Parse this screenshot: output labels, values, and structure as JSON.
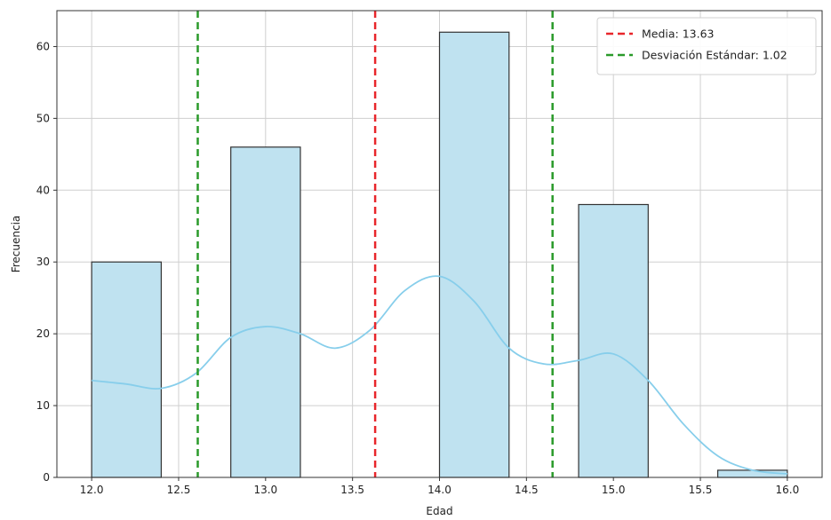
{
  "chart_data": {
    "type": "bar",
    "title": "",
    "xlabel": "Edad",
    "ylabel": "Frecuencia",
    "xlim": [
      11.8,
      16.2
    ],
    "ylim": [
      0,
      65
    ],
    "grid": true,
    "legend_position": "top-right",
    "x_ticks": [
      "12.0",
      "12.5",
      "13.0",
      "13.5",
      "14.0",
      "14.5",
      "15.0",
      "15.5",
      "16.0"
    ],
    "y_ticks": [
      "0",
      "10",
      "20",
      "30",
      "40",
      "50",
      "60"
    ],
    "bins": [
      {
        "start": 12.0,
        "end": 12.4,
        "count": 30
      },
      {
        "start": 12.8,
        "end": 13.2,
        "count": 46
      },
      {
        "start": 13.6,
        "end": 14.0,
        "count": 0
      },
      {
        "start": 14.0,
        "end": 14.4,
        "count": 62
      },
      {
        "start": 14.8,
        "end": 15.2,
        "count": 38
      },
      {
        "start": 15.6,
        "end": 16.0,
        "count": 1
      }
    ],
    "kde": {
      "x": [
        12.0,
        12.2,
        12.4,
        12.6,
        12.8,
        13.0,
        13.2,
        13.4,
        13.6,
        13.8,
        14.0,
        14.2,
        14.4,
        14.6,
        14.8,
        15.0,
        15.2,
        15.4,
        15.6,
        15.8,
        16.0
      ],
      "y": [
        13.5,
        13.0,
        12.4,
        14.5,
        19.5,
        21.0,
        20.0,
        18.0,
        20.5,
        26.0,
        28.0,
        24.5,
        18.0,
        15.8,
        16.3,
        17.2,
        13.5,
        7.5,
        3.0,
        1.0,
        0.5
      ]
    },
    "lines": [
      {
        "name": "Media: 13.63",
        "x": 13.63,
        "color": "#e8262b",
        "style": "dashed"
      },
      {
        "name": "Desviación Estándar: 1.02",
        "x": 12.61,
        "color": "#2a9a2a",
        "style": "dashed"
      },
      {
        "x": 14.65,
        "color": "#2a9a2a",
        "style": "dashed"
      }
    ],
    "colors": {
      "bar_fill": "#bfe2f0",
      "bar_edge": "#333333",
      "kde": "#87ceeb"
    }
  }
}
